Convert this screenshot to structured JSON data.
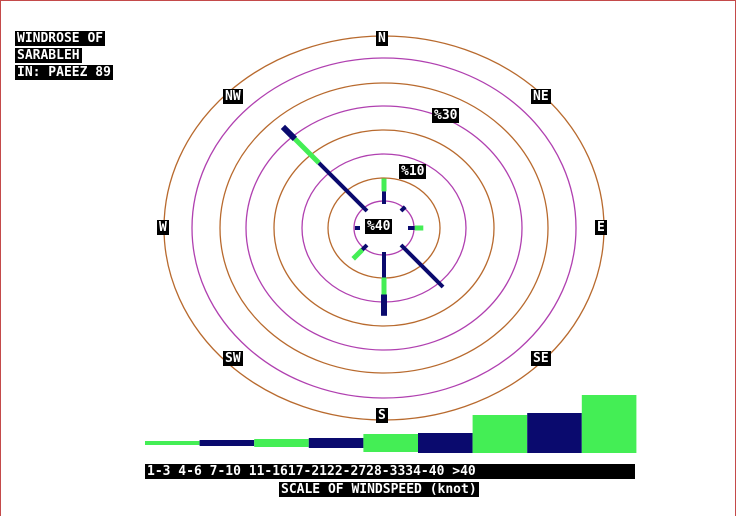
{
  "title_lines": [
    "WINDROSE OF",
    "SARABLEH",
    "IN: PAEEZ 89"
  ],
  "chart_data": {
    "type": "windrose",
    "title": "WINDROSE OF SARABLEH IN: PAEEZ 89",
    "directions": [
      "N",
      "NE",
      "E",
      "SE",
      "S",
      "SW",
      "W",
      "NW"
    ],
    "calm_label": "%40",
    "ring_labels": [
      "%10",
      "%30"
    ],
    "speed_classes": [
      "1-3",
      "4-6",
      "7-10",
      "11-16",
      "17-21",
      "22-27",
      "28-33",
      "34-40",
      ">40"
    ],
    "speed_ticks_text": "1-3  4-6 7-10 11-1617-2122-2728-3334-40 >40",
    "scale_caption": "SCALE OF WINDSPEED (knot)",
    "colors": {
      "green": "#44ee55",
      "navy": "#0a0a6e",
      "ring_a": "#b86a2e",
      "ring_b": "#b040b0",
      "border": "#c44a4a"
    },
    "arms": [
      {
        "direction": "N",
        "segments": [
          1.5,
          1.5
        ]
      },
      {
        "direction": "NE",
        "segments": [
          0.7
        ]
      },
      {
        "direction": "E",
        "segments": [
          0.8,
          1.0
        ]
      },
      {
        "direction": "SE",
        "segments": [
          7.0
        ]
      },
      {
        "direction": "S",
        "segments": [
          3.0,
          2.0,
          2.5
        ]
      },
      {
        "direction": "SW",
        "segments": [
          0.8,
          1.5
        ]
      },
      {
        "direction": "W",
        "segments": [
          0.6
        ]
      },
      {
        "direction": "NW",
        "segments": [
          8.0,
          4.0,
          2.0
        ]
      }
    ]
  }
}
